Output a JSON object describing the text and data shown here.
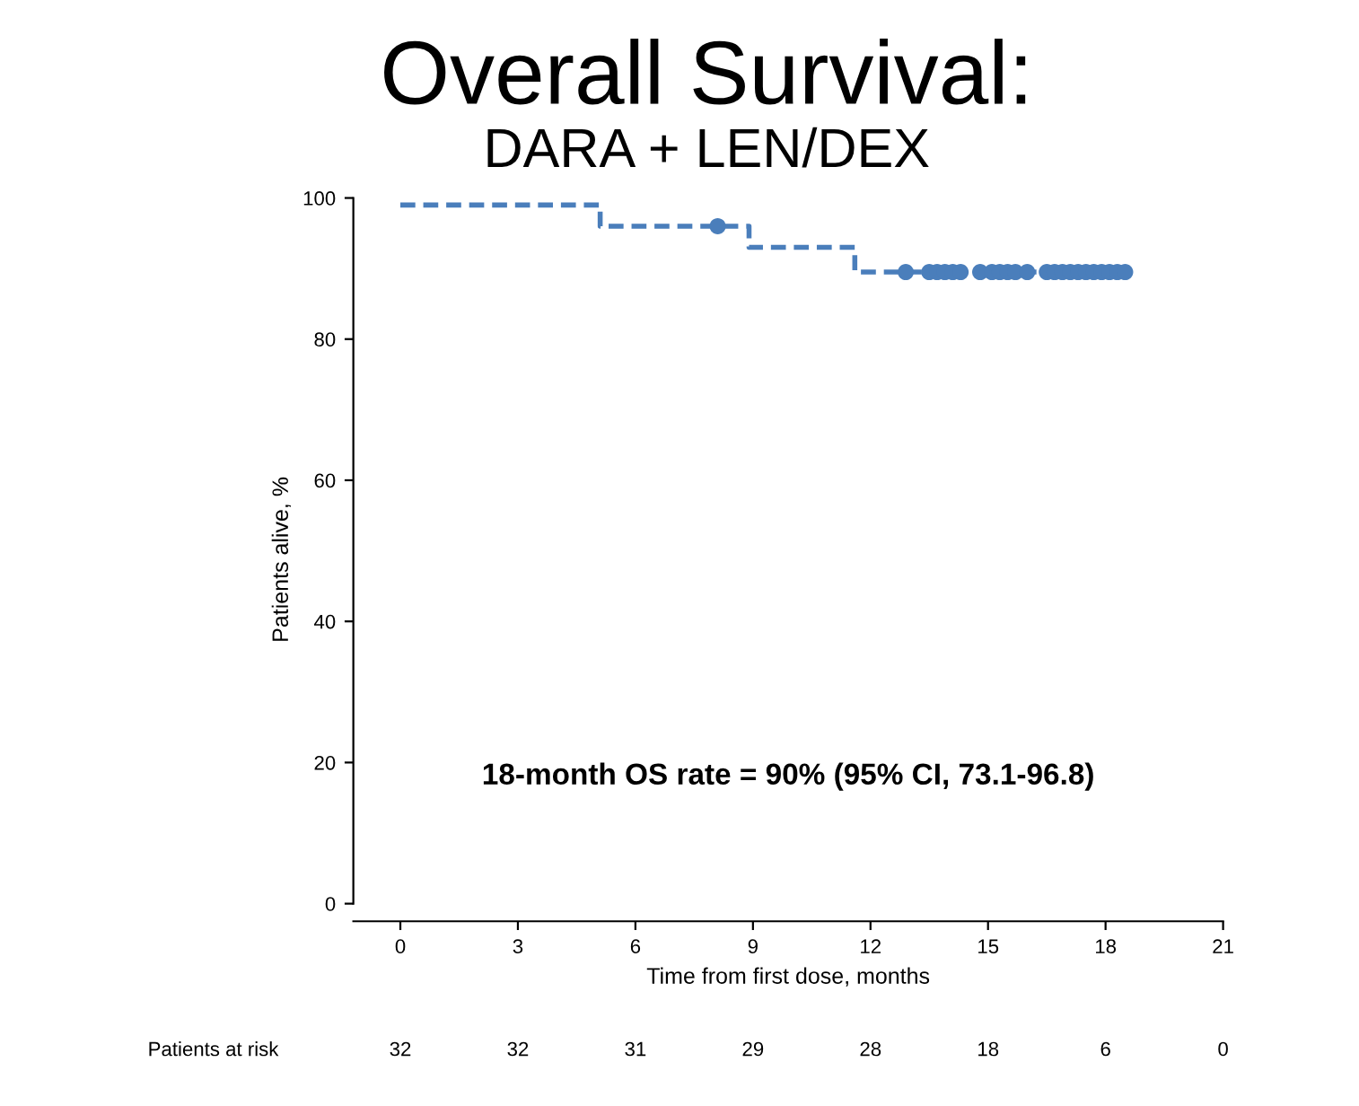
{
  "chart_data": {
    "type": "step",
    "title": "Overall Survival:",
    "subtitle": "DARA + LEN/DEX",
    "xlabel": "Time from first dose, months",
    "ylabel": "Patients alive, %",
    "xlim": [
      -1.2,
      21
    ],
    "ylim": [
      -2.5,
      100
    ],
    "xticks": [
      0,
      3,
      6,
      9,
      12,
      15,
      18,
      21
    ],
    "yticks": [
      0,
      20,
      40,
      60,
      80,
      100
    ],
    "grid": false,
    "legend": false,
    "line_style": "dashed",
    "series": [
      {
        "color": "#4a7ebb",
        "x": [
          0,
          5.1,
          8.9,
          11.6,
          18.5
        ],
        "values": [
          99,
          96,
          93,
          89.5,
          89.5
        ]
      },
      {
        "type": "scatter",
        "color": "#4a7ebb",
        "marker": "circle",
        "x": [
          8.1,
          12.9,
          13.5,
          13.7,
          13.9,
          14.1,
          14.3,
          14.8,
          15.1,
          15.3,
          15.5,
          15.7,
          16.0,
          16.5,
          16.7,
          16.9,
          17.1,
          17.3,
          17.5,
          17.7,
          17.9,
          18.1,
          18.3,
          18.5
        ],
        "values": [
          96,
          89.5,
          89.5,
          89.5,
          89.5,
          89.5,
          89.5,
          89.5,
          89.5,
          89.5,
          89.5,
          89.5,
          89.5,
          89.5,
          89.5,
          89.5,
          89.5,
          89.5,
          89.5,
          89.5,
          89.5,
          89.5,
          89.5,
          89.5
        ]
      }
    ],
    "annotations": [
      "18-month OS rate = 90% (95% CI, 73.1-96.8)",
      "Patients at risk",
      "32",
      "32",
      "31",
      "29",
      "28",
      "18",
      "6",
      "0"
    ]
  }
}
